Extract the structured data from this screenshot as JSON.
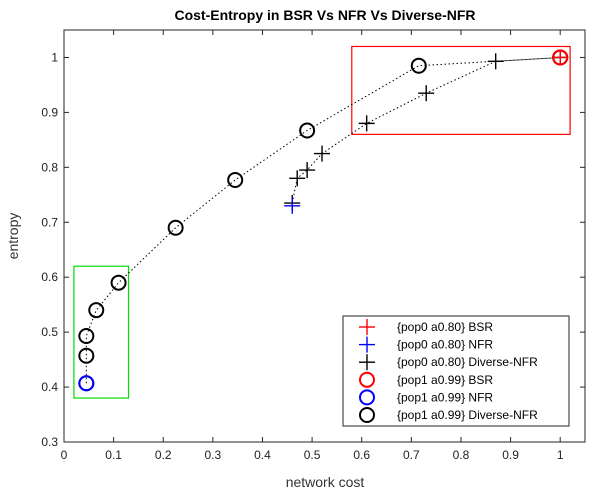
{
  "chart_data": {
    "type": "scatter",
    "title": "Cost-Entropy in BSR Vs NFR Vs Diverse-NFR",
    "xlabel": "network cost",
    "ylabel": "entropy",
    "xlim": [
      0,
      1.05
    ],
    "ylim": [
      0.3,
      1.05
    ],
    "xticks": [
      0,
      0.1,
      0.2,
      0.3,
      0.4,
      0.5,
      0.6,
      0.7,
      0.8,
      0.9,
      1
    ],
    "xtick_labels": [
      "0",
      "0.1",
      "0.2",
      "0.3",
      "0.4",
      "0.5",
      "0.6",
      "0.7",
      "0.8",
      "0.9",
      "1"
    ],
    "yticks": [
      0.3,
      0.4,
      0.5,
      0.6,
      0.7,
      0.8,
      0.9,
      1
    ],
    "ytick_labels": [
      "0.3",
      "0.4",
      "0.5",
      "0.6",
      "0.7",
      "0.8",
      "0.9",
      "1"
    ],
    "grid": false,
    "legend_position": "bottom-right",
    "series": [
      {
        "name": "{pop0 a0.80} BSR",
        "marker": "plus",
        "color": "#ff0000",
        "connected": false,
        "points": [
          [
            1.0,
            1.0
          ]
        ]
      },
      {
        "name": "{pop0 a0.80} NFR",
        "marker": "plus",
        "color": "#0000ff",
        "connected": false,
        "points": [
          [
            0.46,
            0.73
          ]
        ]
      },
      {
        "name": "{pop0 a0.80} Diverse-NFR",
        "marker": "plus",
        "color": "#000000",
        "connected": true,
        "points": [
          [
            0.46,
            0.735
          ],
          [
            0.47,
            0.78
          ],
          [
            0.49,
            0.795
          ],
          [
            0.52,
            0.825
          ],
          [
            0.61,
            0.88
          ],
          [
            0.73,
            0.935
          ],
          [
            0.87,
            0.993
          ],
          [
            1.0,
            1.0
          ]
        ]
      },
      {
        "name": "{pop1 a0.99} BSR",
        "marker": "circle",
        "color": "#ff0000",
        "connected": false,
        "points": [
          [
            1.0,
            1.0
          ]
        ]
      },
      {
        "name": "{pop1 a0.99} NFR",
        "marker": "circle",
        "color": "#0000ff",
        "connected": false,
        "points": [
          [
            0.045,
            0.407
          ]
        ]
      },
      {
        "name": "{pop1 a0.99} Diverse-NFR",
        "marker": "circle",
        "color": "#000000",
        "connected": true,
        "points": [
          [
            0.045,
            0.407
          ],
          [
            0.045,
            0.457
          ],
          [
            0.045,
            0.493
          ],
          [
            0.065,
            0.54
          ],
          [
            0.11,
            0.59
          ],
          [
            0.225,
            0.69
          ],
          [
            0.345,
            0.777
          ],
          [
            0.49,
            0.867
          ],
          [
            0.715,
            0.985
          ],
          [
            1.0,
            1.0
          ]
        ]
      }
    ],
    "annotation_boxes": [
      {
        "name": "green-highlight-box",
        "color": "#00dd00",
        "x": [
          0.02,
          0.13
        ],
        "y": [
          0.38,
          0.62
        ]
      },
      {
        "name": "red-highlight-box",
        "color": "#ff0000",
        "x": [
          0.58,
          1.02
        ],
        "y": [
          0.86,
          1.02
        ]
      }
    ]
  }
}
